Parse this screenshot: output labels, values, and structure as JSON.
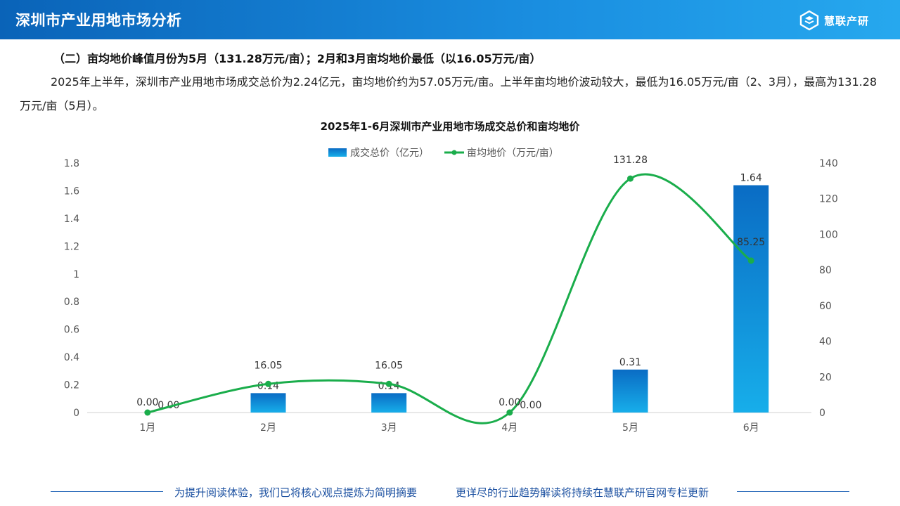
{
  "header": {
    "title": "深圳市产业用地市场分析",
    "brand": "慧联产研"
  },
  "subtitle": "（二）亩均地价峰值月份为5月（131.28万元/亩）；2月和3月亩均地价最低（以16.05万元/亩）",
  "paragraph": "2025年上半年，深圳市产业用地市场成交总价为2.24亿元，亩均地价约为57.05万元/亩。上半年亩均地价波动较大，最低为16.05万元/亩（2、3月），最高为131.28万元/亩（5月）。",
  "footer": {
    "left": "为提升阅读体验，我们已将核心观点提炼为简明摘要",
    "right": "更详尽的行业趋势解读将持续在慧联产研官网专栏更新"
  },
  "chart_data": {
    "type": "bar+line",
    "title": "2025年1-6月深圳市产业用地市场成交总价和亩均地价",
    "categories": [
      "1月",
      "2月",
      "3月",
      "4月",
      "5月",
      "6月"
    ],
    "series": [
      {
        "name": "成交总价（亿元）",
        "type": "bar",
        "axis": "left",
        "values": [
          0.0,
          0.14,
          0.14,
          0.0,
          0.31,
          1.64
        ],
        "labels": [
          "0.00",
          "0.14",
          "0.14",
          "0.00",
          "0.31",
          "1.64"
        ],
        "color": "#0b7fd4"
      },
      {
        "name": "亩均地价（万元/亩）",
        "type": "line",
        "axis": "right",
        "values": [
          0.0,
          16.05,
          16.05,
          0.0,
          131.28,
          85.25
        ],
        "labels": [
          "0.00",
          "16.05",
          "16.05",
          "0.00",
          "131.28",
          "85.25"
        ],
        "color": "#1aad4b"
      }
    ],
    "y_left": {
      "ylim": [
        0,
        1.8
      ],
      "ticks": [
        "0",
        "0.2",
        "0.4",
        "0.6",
        "0.8",
        "1",
        "1.2",
        "1.4",
        "1.6",
        "1.8"
      ]
    },
    "y_right": {
      "ylim": [
        0,
        140
      ],
      "ticks": [
        "0",
        "20",
        "40",
        "60",
        "80",
        "100",
        "120",
        "140"
      ]
    },
    "legend_position": "top-center",
    "grid": false
  }
}
